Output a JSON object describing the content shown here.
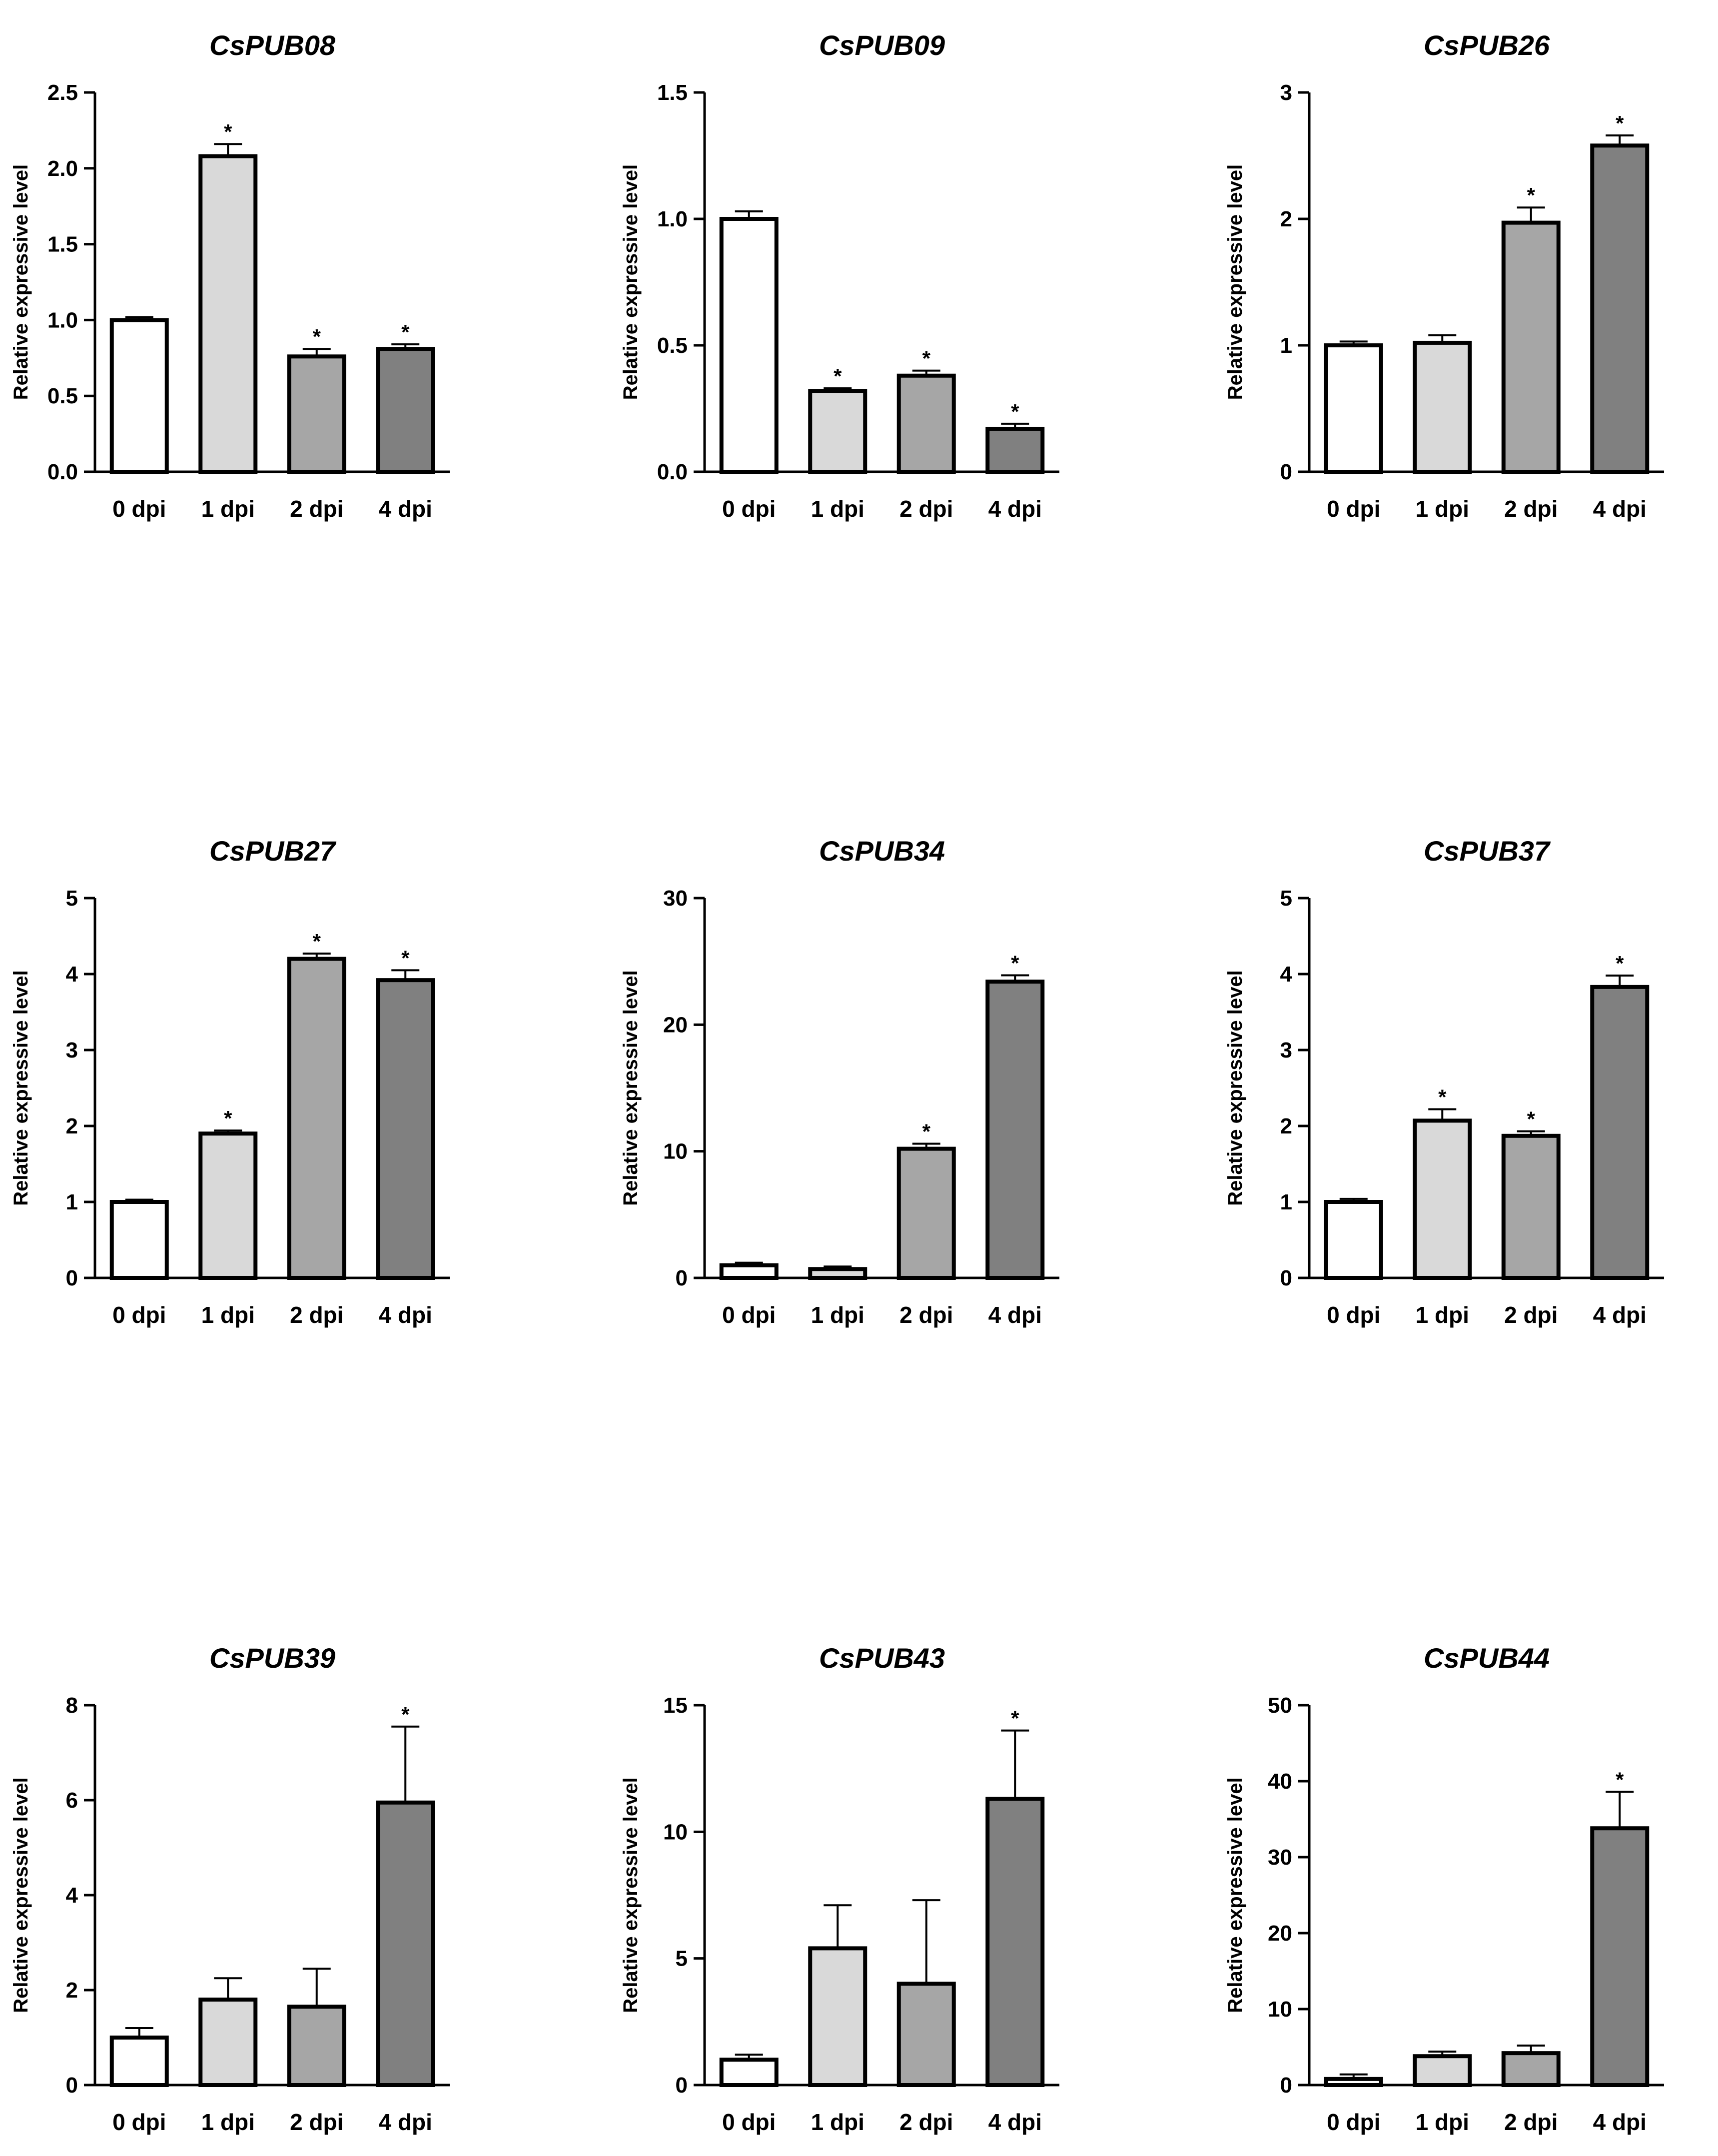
{
  "figure": {
    "type": "bar",
    "panel_count": 9,
    "significance_mark": "*",
    "colors": {
      "0 dpi": "#ffffff",
      "1 dpi": "#d9d9d9",
      "2 dpi": "#a6a6a6",
      "4 dpi": "#808080",
      "outline": "#000000"
    }
  },
  "chart_data": [
    {
      "type": "bar",
      "title": "CsPUB08",
      "ylabel": "Relative expressive level",
      "xlabel": "",
      "categories": [
        "0 dpi",
        "1 dpi",
        "2 dpi",
        "4 dpi"
      ],
      "values": [
        1.0,
        2.08,
        0.76,
        0.81
      ],
      "errors": [
        0.02,
        0.08,
        0.05,
        0.03
      ],
      "significant": [
        false,
        true,
        true,
        true
      ],
      "ylim": [
        0,
        2.5
      ],
      "yticks": [
        "0.0",
        "0.5",
        "1.0",
        "1.5",
        "2.0",
        "2.5"
      ]
    },
    {
      "type": "bar",
      "title": "CsPUB09",
      "ylabel": "Relative expressive level",
      "xlabel": "",
      "categories": [
        "0 dpi",
        "1 dpi",
        "2 dpi",
        "4 dpi"
      ],
      "values": [
        1.0,
        0.32,
        0.38,
        0.17
      ],
      "errors": [
        0.03,
        0.01,
        0.02,
        0.02
      ],
      "significant": [
        false,
        true,
        true,
        true
      ],
      "ylim": [
        0,
        1.5
      ],
      "yticks": [
        "0.0",
        "0.5",
        "1.0",
        "1.5"
      ]
    },
    {
      "type": "bar",
      "title": "CsPUB26",
      "ylabel": "Relative expressive level",
      "xlabel": "",
      "categories": [
        "0 dpi",
        "1 dpi",
        "2 dpi",
        "4 dpi"
      ],
      "values": [
        1.0,
        1.02,
        1.97,
        2.58
      ],
      "errors": [
        0.03,
        0.06,
        0.12,
        0.08
      ],
      "significant": [
        false,
        false,
        true,
        true
      ],
      "ylim": [
        0,
        3
      ],
      "yticks": [
        "0",
        "1",
        "2",
        "3"
      ]
    },
    {
      "type": "bar",
      "title": "CsPUB27",
      "ylabel": "Relative expressive level",
      "xlabel": "",
      "categories": [
        "0 dpi",
        "1 dpi",
        "2 dpi",
        "4 dpi"
      ],
      "values": [
        1.0,
        1.9,
        4.2,
        3.92
      ],
      "errors": [
        0.03,
        0.04,
        0.07,
        0.13
      ],
      "significant": [
        false,
        true,
        true,
        true
      ],
      "ylim": [
        0,
        5
      ],
      "yticks": [
        "0",
        "1",
        "2",
        "3",
        "4",
        "5"
      ]
    },
    {
      "type": "bar",
      "title": "CsPUB34",
      "ylabel": "Relative expressive level",
      "xlabel": "",
      "categories": [
        "0 dpi",
        "1 dpi",
        "2 dpi",
        "4 dpi"
      ],
      "values": [
        1.0,
        0.7,
        10.2,
        23.4
      ],
      "errors": [
        0.2,
        0.2,
        0.4,
        0.5
      ],
      "significant": [
        false,
        false,
        true,
        true
      ],
      "ylim": [
        0,
        30
      ],
      "yticks": [
        "0",
        "10",
        "20",
        "30"
      ]
    },
    {
      "type": "bar",
      "title": "CsPUB37",
      "ylabel": "Relative expressive level",
      "xlabel": "",
      "categories": [
        "0 dpi",
        "1 dpi",
        "2 dpi",
        "4 dpi"
      ],
      "values": [
        1.0,
        2.07,
        1.87,
        3.83
      ],
      "errors": [
        0.04,
        0.15,
        0.06,
        0.15
      ],
      "significant": [
        false,
        true,
        true,
        true
      ],
      "ylim": [
        0,
        5
      ],
      "yticks": [
        "0",
        "1",
        "2",
        "3",
        "4",
        "5"
      ]
    },
    {
      "type": "bar",
      "title": "CsPUB39",
      "ylabel": "Relative expressive level",
      "xlabel": "",
      "categories": [
        "0 dpi",
        "1 dpi",
        "2 dpi",
        "4 dpi"
      ],
      "values": [
        1.0,
        1.8,
        1.65,
        5.95
      ],
      "errors": [
        0.2,
        0.45,
        0.8,
        1.6
      ],
      "significant": [
        false,
        false,
        false,
        true
      ],
      "ylim": [
        0,
        8
      ],
      "yticks": [
        "0",
        "2",
        "4",
        "6",
        "8"
      ]
    },
    {
      "type": "bar",
      "title": "CsPUB43",
      "ylabel": "Relative expressive level",
      "xlabel": "",
      "categories": [
        "0 dpi",
        "1 dpi",
        "2 dpi",
        "4 dpi"
      ],
      "values": [
        1.0,
        5.4,
        4.0,
        11.3
      ],
      "errors": [
        0.2,
        1.7,
        3.3,
        2.7
      ],
      "significant": [
        false,
        false,
        false,
        true
      ],
      "ylim": [
        0,
        15
      ],
      "yticks": [
        "0",
        "5",
        "10",
        "15"
      ]
    },
    {
      "type": "bar",
      "title": "CsPUB44",
      "ylabel": "Relative expressive level",
      "xlabel": "",
      "categories": [
        "0 dpi",
        "1 dpi",
        "2 dpi",
        "4 dpi"
      ],
      "values": [
        0.8,
        3.8,
        4.2,
        33.8
      ],
      "errors": [
        0.6,
        0.6,
        1.0,
        4.8
      ],
      "significant": [
        false,
        false,
        false,
        true
      ],
      "ylim": [
        0,
        50
      ],
      "yticks": [
        "0",
        "10",
        "20",
        "30",
        "40",
        "50"
      ]
    }
  ]
}
